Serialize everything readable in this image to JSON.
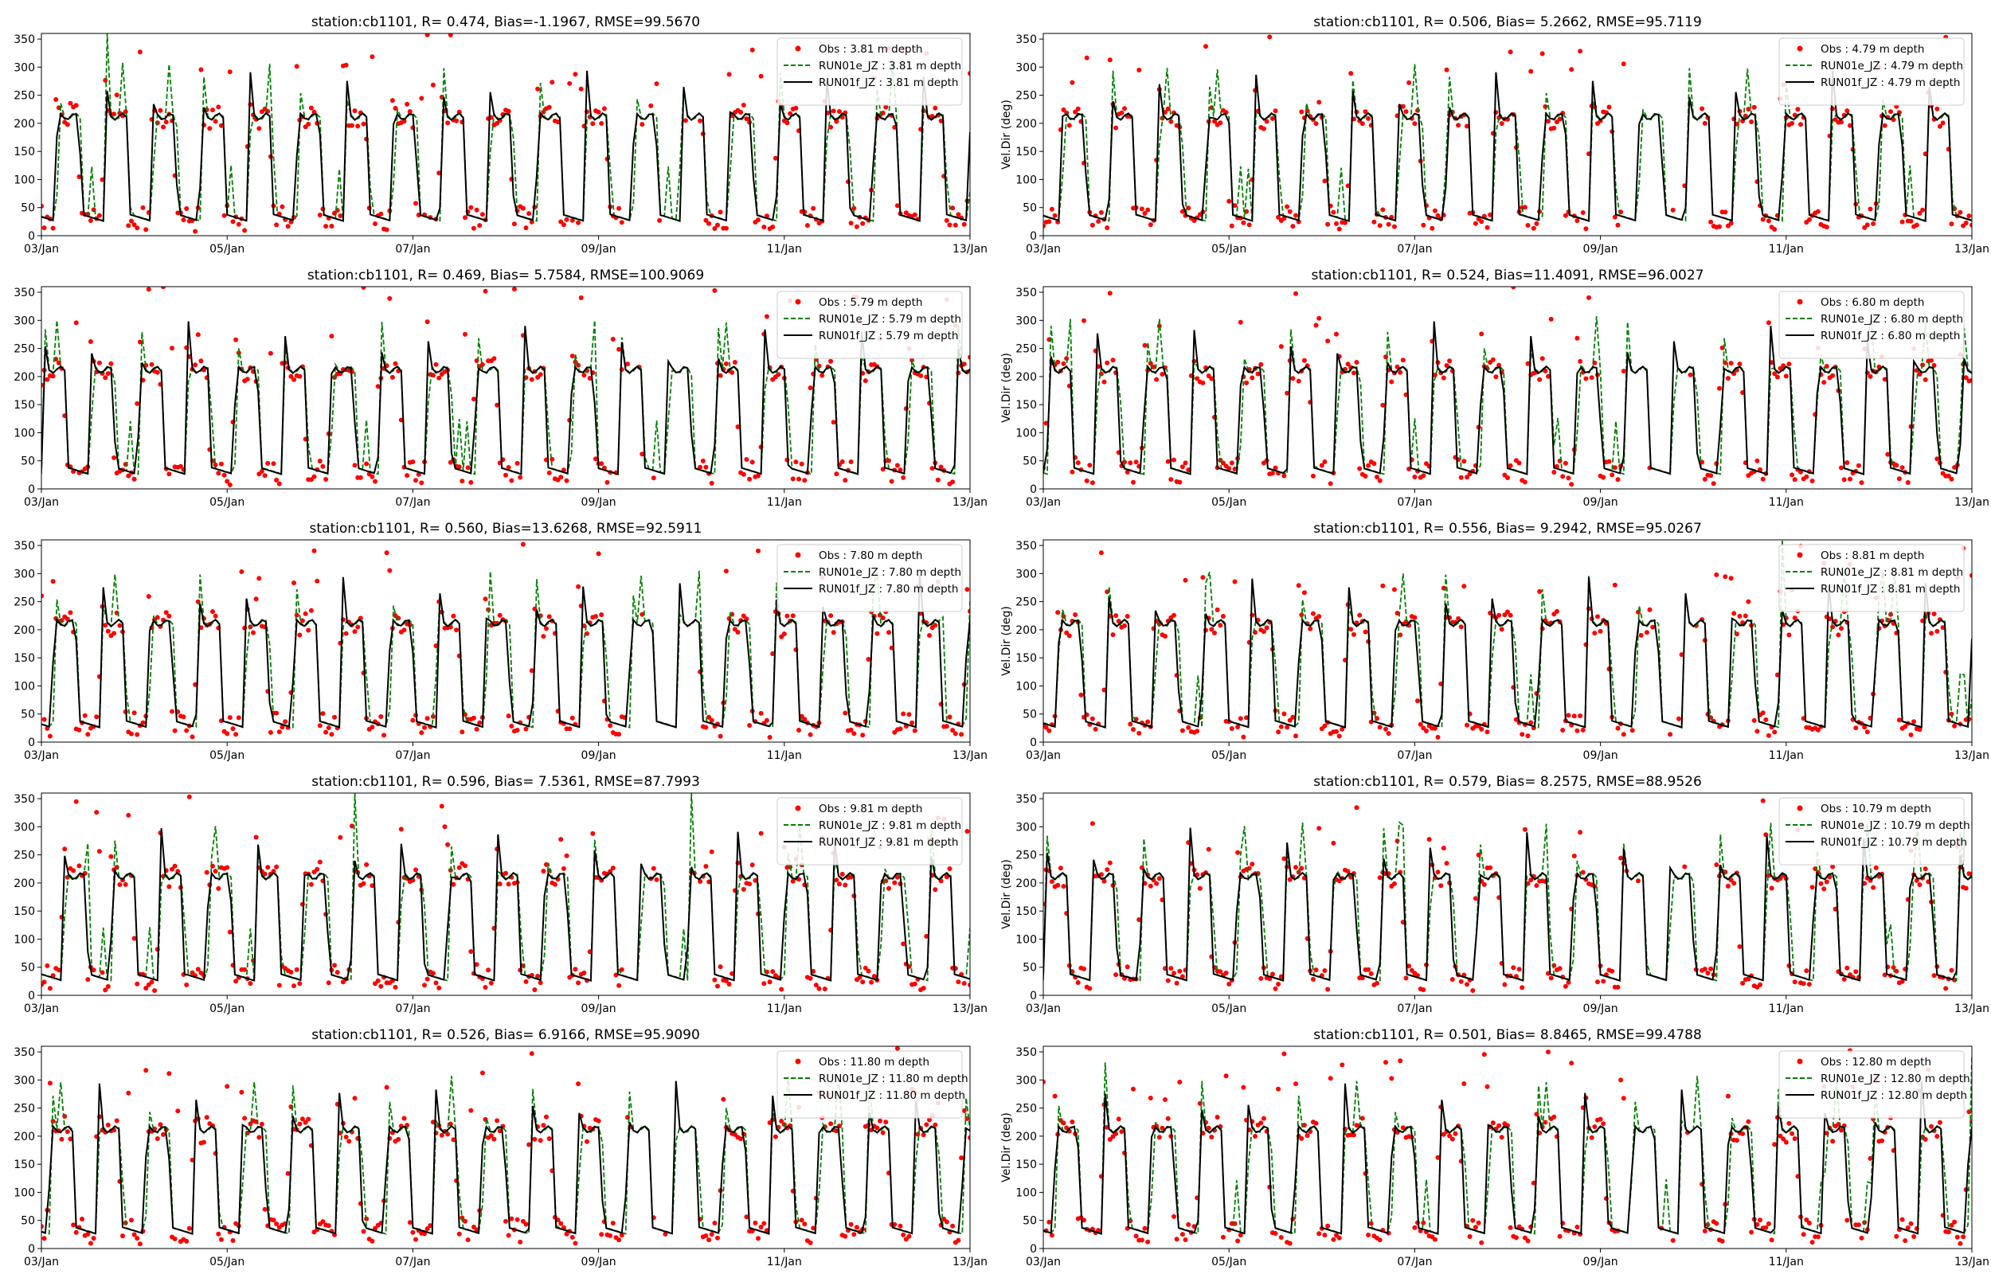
{
  "figure": {
    "station": "station:cb1101",
    "ylabel": "Vel.Dir (deg)",
    "x_ticks": [
      "03/Jan",
      "05/Jan",
      "07/Jan",
      "09/Jan",
      "11/Jan",
      "13/Jan"
    ],
    "y_ticks": [
      "0",
      "50",
      "100",
      "150",
      "200",
      "250",
      "300",
      "350"
    ],
    "colors": {
      "obs": "#ff0000",
      "run01e": "#008000",
      "run01f": "#000000"
    }
  },
  "chart_data": [
    {
      "type": "line",
      "title": "station:cb1101, R= 0.474, Bias=-1.1967, RMSE=99.5670",
      "ylabel": "",
      "xlim": [
        "03/Jan",
        "13/Jan"
      ],
      "ylim": [
        0,
        360
      ],
      "legend_position": "top-right",
      "seed": 11,
      "series": [
        {
          "name": "Obs : 3.81 m depth",
          "style": "dots"
        },
        {
          "name": "RUN01e_JZ : 3.81 m depth",
          "style": "dashed"
        },
        {
          "name": "RUN01f_JZ : 3.81 m depth",
          "style": "solid"
        }
      ]
    },
    {
      "type": "line",
      "title": "station:cb1101, R= 0.506, Bias= 5.2662, RMSE=95.7119",
      "ylabel": "Vel.Dir (deg)",
      "xlim": [
        "03/Jan",
        "13/Jan"
      ],
      "ylim": [
        0,
        360
      ],
      "legend_position": "top-right",
      "seed": 12,
      "series": [
        {
          "name": "Obs : 4.79 m depth",
          "style": "dots"
        },
        {
          "name": "RUN01e_JZ : 4.79 m depth",
          "style": "dashed"
        },
        {
          "name": "RUN01f_JZ : 4.79 m depth",
          "style": "solid"
        }
      ]
    },
    {
      "type": "line",
      "title": "station:cb1101, R= 0.469, Bias= 5.7584, RMSE=100.9069",
      "ylabel": "",
      "xlim": [
        "03/Jan",
        "13/Jan"
      ],
      "ylim": [
        0,
        360
      ],
      "legend_position": "top-right",
      "seed": 21,
      "series": [
        {
          "name": "Obs : 5.79 m depth",
          "style": "dots"
        },
        {
          "name": "RUN01e_JZ : 5.79 m depth",
          "style": "dashed"
        },
        {
          "name": "RUN01f_JZ : 5.79 m depth",
          "style": "solid"
        }
      ]
    },
    {
      "type": "line",
      "title": "station:cb1101, R= 0.524, Bias=11.4091, RMSE=96.0027",
      "ylabel": "Vel.Dir (deg)",
      "xlim": [
        "03/Jan",
        "13/Jan"
      ],
      "ylim": [
        0,
        360
      ],
      "legend_position": "top-right",
      "seed": 22,
      "series": [
        {
          "name": "Obs : 6.80 m depth",
          "style": "dots"
        },
        {
          "name": "RUN01e_JZ : 6.80 m depth",
          "style": "dashed"
        },
        {
          "name": "RUN01f_JZ : 6.80 m depth",
          "style": "solid"
        }
      ]
    },
    {
      "type": "line",
      "title": "station:cb1101, R= 0.560, Bias=13.6268, RMSE=92.5911",
      "ylabel": "",
      "xlim": [
        "03/Jan",
        "13/Jan"
      ],
      "ylim": [
        0,
        360
      ],
      "legend_position": "top-right",
      "seed": 31,
      "series": [
        {
          "name": "Obs : 7.80 m depth",
          "style": "dots"
        },
        {
          "name": "RUN01e_JZ : 7.80 m depth",
          "style": "dashed"
        },
        {
          "name": "RUN01f_JZ : 7.80 m depth",
          "style": "solid"
        }
      ]
    },
    {
      "type": "line",
      "title": "station:cb1101, R= 0.556, Bias= 9.2942, RMSE=95.0267",
      "ylabel": "Vel.Dir (deg)",
      "xlim": [
        "03/Jan",
        "13/Jan"
      ],
      "ylim": [
        0,
        360
      ],
      "legend_position": "top-right",
      "seed": 32,
      "series": [
        {
          "name": "Obs : 8.81 m depth",
          "style": "dots"
        },
        {
          "name": "RUN01e_JZ : 8.81 m depth",
          "style": "dashed"
        },
        {
          "name": "RUN01f_JZ : 8.81 m depth",
          "style": "solid"
        }
      ]
    },
    {
      "type": "line",
      "title": "station:cb1101, R= 0.596, Bias= 7.5361, RMSE=87.7993",
      "ylabel": "",
      "xlim": [
        "03/Jan",
        "13/Jan"
      ],
      "ylim": [
        0,
        360
      ],
      "legend_position": "top-right",
      "seed": 41,
      "series": [
        {
          "name": "Obs : 9.81 m depth",
          "style": "dots"
        },
        {
          "name": "RUN01e_JZ : 9.81 m depth",
          "style": "dashed"
        },
        {
          "name": "RUN01f_JZ : 9.81 m depth",
          "style": "solid"
        }
      ]
    },
    {
      "type": "line",
      "title": "station:cb1101, R= 0.579, Bias= 8.2575, RMSE=88.9526",
      "ylabel": "Vel.Dir (deg)",
      "xlim": [
        "03/Jan",
        "13/Jan"
      ],
      "ylim": [
        0,
        360
      ],
      "legend_position": "top-right",
      "seed": 42,
      "series": [
        {
          "name": "Obs : 10.79 m depth",
          "style": "dots"
        },
        {
          "name": "RUN01e_JZ : 10.79 m depth",
          "style": "dashed"
        },
        {
          "name": "RUN01f_JZ : 10.79 m depth",
          "style": "solid"
        }
      ]
    },
    {
      "type": "line",
      "title": "station:cb1101, R= 0.526, Bias= 6.9166, RMSE=95.9090",
      "ylabel": "",
      "xlim": [
        "03/Jan",
        "13/Jan"
      ],
      "ylim": [
        0,
        360
      ],
      "legend_position": "top-right",
      "seed": 51,
      "series": [
        {
          "name": "Obs : 11.80 m depth",
          "style": "dots"
        },
        {
          "name": "RUN01e_JZ : 11.80 m depth",
          "style": "dashed"
        },
        {
          "name": "RUN01f_JZ : 11.80 m depth",
          "style": "solid"
        }
      ]
    },
    {
      "type": "line",
      "title": "station:cb1101, R= 0.501, Bias= 8.8465, RMSE=99.4788",
      "ylabel": "Vel.Dir (deg)",
      "xlim": [
        "03/Jan",
        "13/Jan"
      ],
      "ylim": [
        0,
        360
      ],
      "legend_position": "top-right",
      "seed": 52,
      "series": [
        {
          "name": "Obs : 12.80 m depth",
          "style": "dots"
        },
        {
          "name": "RUN01e_JZ : 12.80 m depth",
          "style": "dashed"
        },
        {
          "name": "RUN01f_JZ : 12.80 m depth",
          "style": "solid"
        }
      ]
    }
  ]
}
